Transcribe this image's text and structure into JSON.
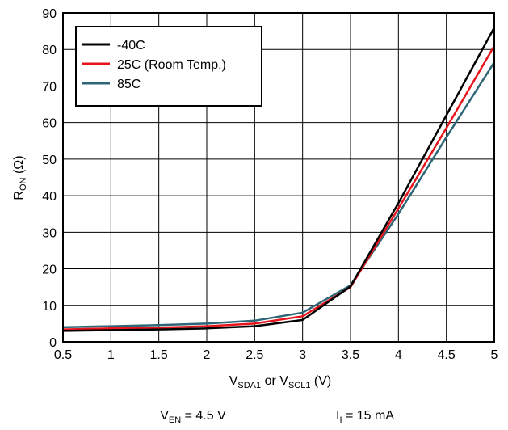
{
  "chart_data": {
    "type": "line",
    "title": "",
    "xlabel": {
      "main1": "V",
      "sub1": "SDA1",
      "mid": " or V",
      "sub2": "SCL1",
      "tail": " (V)"
    },
    "ylabel": {
      "main": "R",
      "sub": "ON",
      "tail": " (Ω)"
    },
    "xlim": [
      0.5,
      5
    ],
    "ylim": [
      0,
      90
    ],
    "xticks": [
      "0.5",
      "1",
      "1.5",
      "2",
      "2.5",
      "3",
      "3.5",
      "4",
      "4.5",
      "5"
    ],
    "yticks": [
      "0",
      "10",
      "20",
      "30",
      "40",
      "50",
      "60",
      "70",
      "80",
      "90"
    ],
    "grid": true,
    "legend_position": "top-left",
    "series": [
      {
        "name": "-40C",
        "color": "#000000",
        "x": [
          0.5,
          1,
          1.5,
          2,
          2.5,
          3,
          3.5,
          4,
          4.5,
          5
        ],
        "y": [
          3.0,
          3.2,
          3.4,
          3.7,
          4.3,
          6.0,
          15.2,
          38.0,
          62.0,
          86.0
        ]
      },
      {
        "name": "25C (Room Temp.)",
        "color": "#e8141c",
        "x": [
          0.5,
          1,
          1.5,
          2,
          2.5,
          3,
          3.5,
          4,
          4.5,
          5
        ],
        "y": [
          3.4,
          3.7,
          3.9,
          4.3,
          5.0,
          7.0,
          15.0,
          36.5,
          58.5,
          81.0
        ]
      },
      {
        "name": "85C",
        "color": "#2e6677",
        "x": [
          0.5,
          1,
          1.5,
          2,
          2.5,
          3,
          3.5,
          4,
          4.5,
          5
        ],
        "y": [
          4.0,
          4.3,
          4.6,
          5.0,
          5.8,
          8.0,
          15.5,
          35.0,
          56.0,
          76.5
        ]
      }
    ],
    "annotations": {
      "cond1": {
        "main": "V",
        "sub": "EN",
        "tail": " = 4.5 V"
      },
      "cond2": {
        "main": "I",
        "sub": "I",
        "tail": " = 15 mA"
      }
    }
  }
}
